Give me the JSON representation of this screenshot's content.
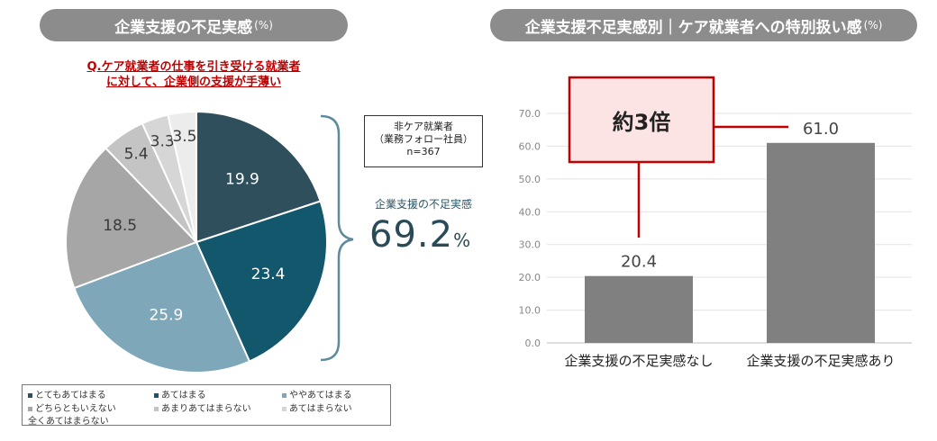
{
  "left_panel": {
    "title": "企業支援の不足実感",
    "title_unit": "(%)",
    "question_line1": "Q.ケア就業者の仕事を引き受ける就業者",
    "question_line2": "に対して、企業側の支援が手薄い",
    "sample_line1": "非ケア就業者",
    "sample_line2": "（業務フォロー社員）",
    "sample_line3": "n=367",
    "kpi_label": "企業支援の不足実感",
    "kpi_value": "69.2",
    "kpi_unit": "%"
  },
  "right_panel": {
    "title": "企業支援不足実感別｜ケア就業者への特別扱い感",
    "title_unit": "(%)",
    "callout": "約3倍"
  },
  "chart_data": [
    {
      "type": "pie",
      "categories": [
        "とてもあてはまる",
        "あてはまる",
        "ややあてはまる",
        "どちらともいえない",
        "あまりあてはまらない",
        "あてはまらない",
        "全くあてはまらない"
      ],
      "values": [
        19.9,
        23.4,
        25.9,
        18.5,
        5.4,
        3.3,
        3.5
      ],
      "labels": [
        "19.9",
        "23.4",
        "25.9",
        "18.5",
        "5.4",
        "3.3",
        "3.5"
      ],
      "colors": [
        "#2f4f5c",
        "#12576b",
        "#7ea7b9",
        "#a6a6a6",
        "#c4c4c4",
        "#d6d6d6",
        "#ececec"
      ],
      "legend_position": "bottom"
    },
    {
      "type": "bar",
      "categories": [
        "企業支援の不足実感なし",
        "企業支援の不足実感あり"
      ],
      "values": [
        20.4,
        61.0
      ],
      "labels": [
        "20.4",
        "61.0"
      ],
      "ylim": [
        0,
        70
      ],
      "yticks": [
        "0.0",
        "10.0",
        "20.0",
        "30.0",
        "40.0",
        "50.0",
        "60.0",
        "70.0"
      ],
      "grid": true,
      "bar_color": "#808080"
    }
  ]
}
